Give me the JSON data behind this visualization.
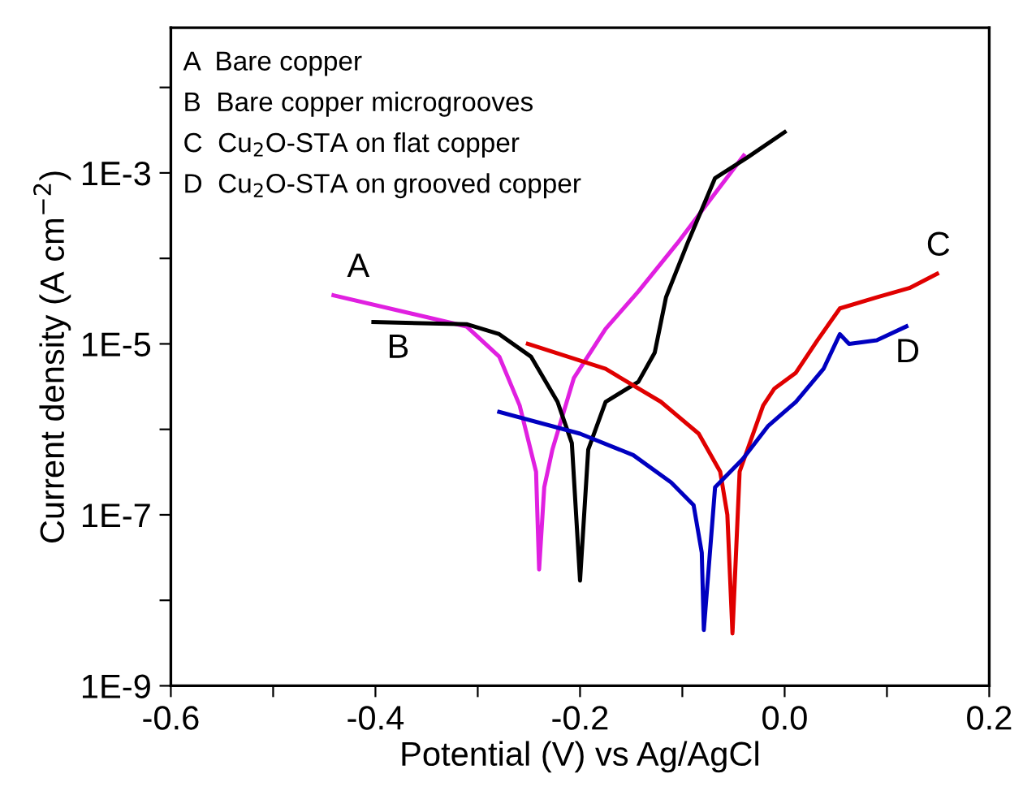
{
  "chart_data": {
    "type": "line",
    "xlabel": "Potential (V) vs Ag/AgCl",
    "ylabel": "Current density (A cm$^{−2}$)",
    "log": "y",
    "xlim": [
      -0.6,
      0.2
    ],
    "xticks": [
      -0.6,
      {
        "value": -0.5,
        "label": null
      },
      -0.4,
      {
        "value": -0.3,
        "label": null
      },
      -0.2,
      {
        "value": -0.1,
        "label": null
      },
      {
        "value": 0.0,
        "label": "0.0"
      },
      {
        "value": 0.1,
        "label": null
      },
      0.2
    ],
    "ylim": [
      1e-09,
      0.05
    ],
    "yticks": [
      {
        "value": 1e-09,
        "label": "1E-9"
      },
      {
        "value": 1e-08,
        "label": null
      },
      {
        "value": 1e-07,
        "label": "1E-7"
      },
      {
        "value": 1e-06,
        "label": null
      },
      {
        "value": 1e-05,
        "label": "1E-5"
      },
      {
        "value": 0.0001,
        "label": null
      },
      {
        "value": 0.001,
        "label": "1E-3"
      },
      {
        "value": 0.01,
        "label": null
      }
    ],
    "grid": false,
    "legend": false,
    "marker": "none",
    "line_style": "solid",
    "series": [
      {
        "name": "A",
        "color": "#e020e0",
        "x": [
          -0.441,
          -0.311,
          -0.279,
          -0.259,
          -0.243,
          -0.24,
          -0.235,
          -0.227,
          -0.206,
          -0.175,
          -0.143,
          -0.105,
          -0.04
        ],
        "values": [
          3.7e-05,
          1.6e-05,
          7.1e-06,
          1.9e-06,
          3.2e-07,
          2.3e-08,
          2.1e-07,
          5.8e-07,
          4e-06,
          1.5e-05,
          4.1e-05,
          0.00015,
          0.0016
        ]
      },
      {
        "name": "B",
        "color": "#000000",
        "x": [
          -0.402,
          -0.311,
          -0.279,
          -0.248,
          -0.222,
          -0.208,
          -0.2,
          -0.192,
          -0.175,
          -0.143,
          -0.127,
          -0.116,
          -0.095,
          -0.068,
          -0.037,
          0.0
        ],
        "values": [
          1.8e-05,
          1.7e-05,
          1.3e-05,
          7.1e-06,
          2.1e-06,
          6.9e-07,
          1.7e-08,
          5.8e-07,
          2.1e-06,
          3.6e-06,
          7.9e-06,
          3.5e-05,
          0.00015,
          0.00087,
          0.0015,
          0.003
        ]
      },
      {
        "name": "C",
        "color": "#e00000",
        "x": [
          -0.251,
          -0.175,
          -0.121,
          -0.084,
          -0.063,
          -0.056,
          -0.051,
          -0.044,
          -0.021,
          -0.01,
          0.011,
          0.032,
          0.054,
          0.09,
          0.122,
          0.149
        ],
        "values": [
          1e-05,
          5.1e-06,
          2.1e-06,
          8.9e-07,
          3.2e-07,
          1e-07,
          4.1e-09,
          3.2e-07,
          1.9e-06,
          3e-06,
          4.6e-06,
          1.1e-05,
          2.6e-05,
          3.5e-05,
          4.5e-05,
          6.6e-05
        ]
      },
      {
        "name": "D",
        "color": "#0000c0",
        "x": [
          -0.279,
          -0.2,
          -0.148,
          -0.111,
          -0.089,
          -0.081,
          -0.079,
          -0.068,
          -0.041,
          -0.016,
          0.011,
          0.038,
          0.054,
          0.063,
          0.09,
          0.119
        ],
        "values": [
          1.6e-06,
          8.9e-07,
          5e-07,
          2.4e-07,
          1.3e-07,
          3.6e-08,
          4.5e-09,
          2.1e-07,
          4.5e-07,
          1.1e-06,
          2.1e-06,
          5.1e-06,
          1.3e-05,
          1e-05,
          1.1e-05,
          1.6e-05
        ]
      }
    ],
    "annotations": [
      "A  Bare copper",
      "B  Bare copper microgrooves",
      "C  Cu$_{2}$O-STA on flat copper",
      "D  Cu$_{2}$O-STA on grooved copper"
    ]
  }
}
